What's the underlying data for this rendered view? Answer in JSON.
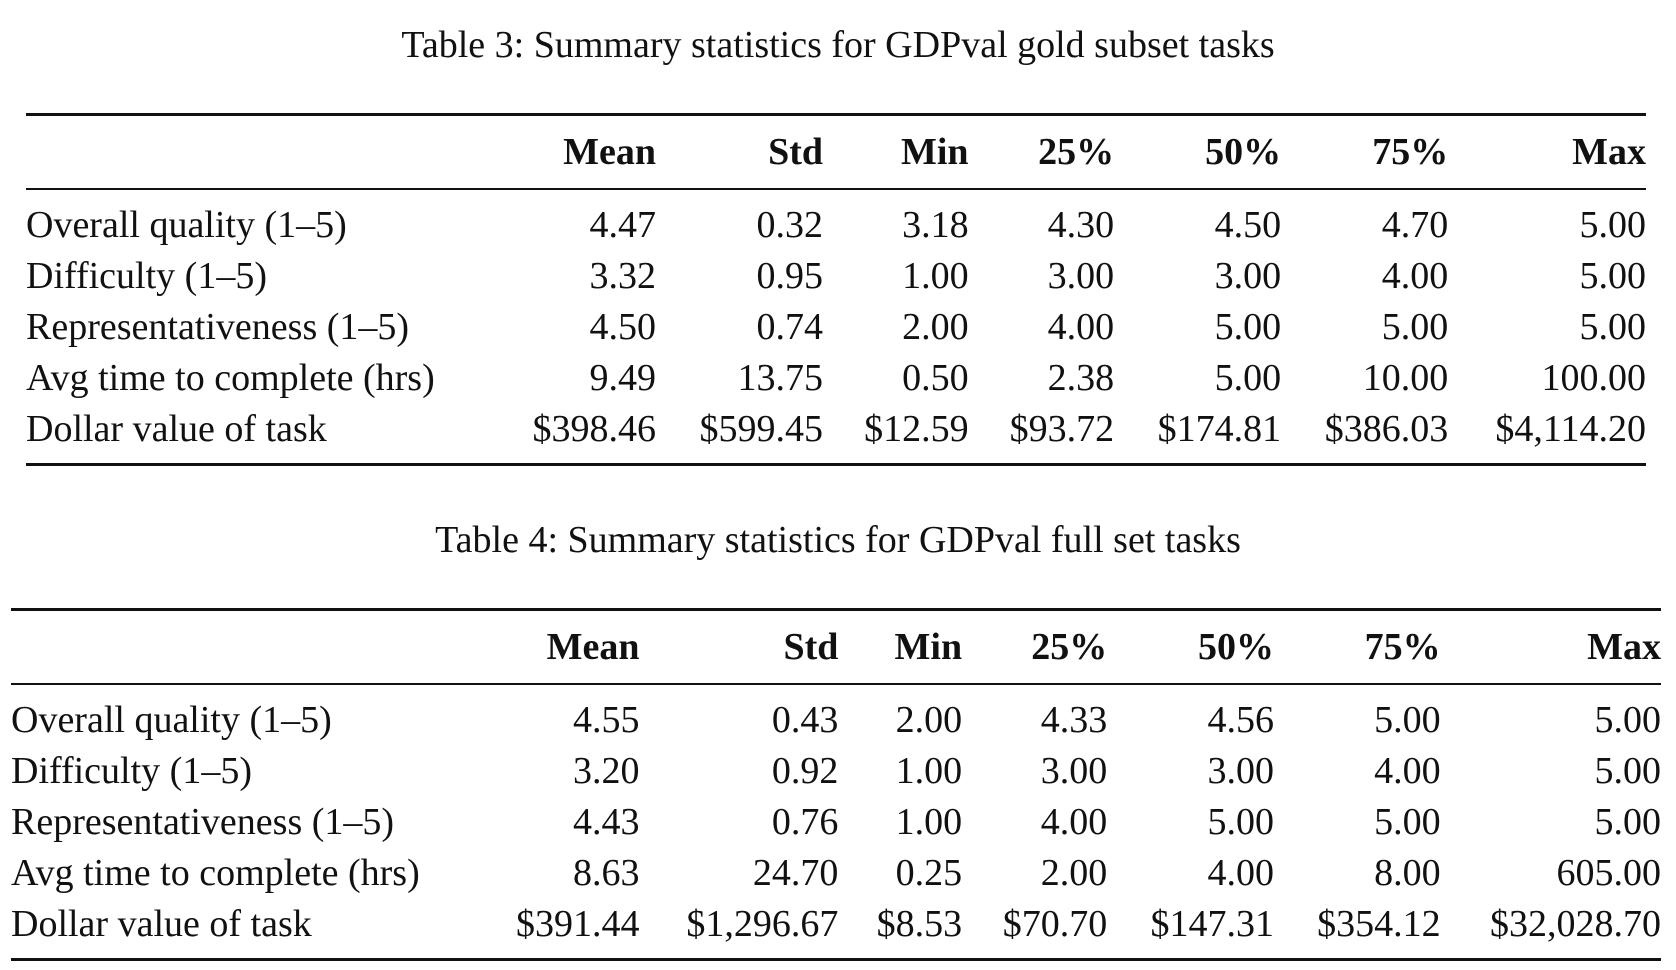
{
  "tables": [
    {
      "caption": "Table 3: Summary statistics for GDPval gold subset tasks",
      "columns": [
        "",
        "Mean",
        "Std",
        "Min",
        "25%",
        "50%",
        "75%",
        "Max"
      ],
      "rows": [
        [
          "Overall quality (1–5)",
          "4.47",
          "0.32",
          "3.18",
          "4.30",
          "4.50",
          "4.70",
          "5.00"
        ],
        [
          "Difficulty (1–5)",
          "3.32",
          "0.95",
          "1.00",
          "3.00",
          "3.00",
          "4.00",
          "5.00"
        ],
        [
          "Representativeness (1–5)",
          "4.50",
          "0.74",
          "2.00",
          "4.00",
          "5.00",
          "5.00",
          "5.00"
        ],
        [
          "Avg time to complete (hrs)",
          "9.49",
          "13.75",
          "0.50",
          "2.38",
          "5.00",
          "10.00",
          "100.00"
        ],
        [
          "Dollar value of task",
          "$398.46",
          "$599.45",
          "$12.59",
          "$93.72",
          "$174.81",
          "$386.03",
          "$4,114.20"
        ]
      ]
    },
    {
      "caption": "Table 4: Summary statistics for GDPval full set tasks",
      "columns": [
        "",
        "Mean",
        "Std",
        "Min",
        "25%",
        "50%",
        "75%",
        "Max"
      ],
      "rows": [
        [
          "Overall quality (1–5)",
          "4.55",
          "0.43",
          "2.00",
          "4.33",
          "4.56",
          "5.00",
          "5.00"
        ],
        [
          "Difficulty (1–5)",
          "3.20",
          "0.92",
          "1.00",
          "3.00",
          "3.00",
          "4.00",
          "5.00"
        ],
        [
          "Representativeness (1–5)",
          "4.43",
          "0.76",
          "1.00",
          "4.00",
          "5.00",
          "5.00",
          "5.00"
        ],
        [
          "Avg time to complete (hrs)",
          "8.63",
          "24.70",
          "0.25",
          "2.00",
          "4.00",
          "8.00",
          "605.00"
        ],
        [
          "Dollar value of task",
          "$391.44",
          "$1,296.67",
          "$8.53",
          "$70.70",
          "$147.31",
          "$354.12",
          "$32,028.70"
        ]
      ]
    }
  ]
}
